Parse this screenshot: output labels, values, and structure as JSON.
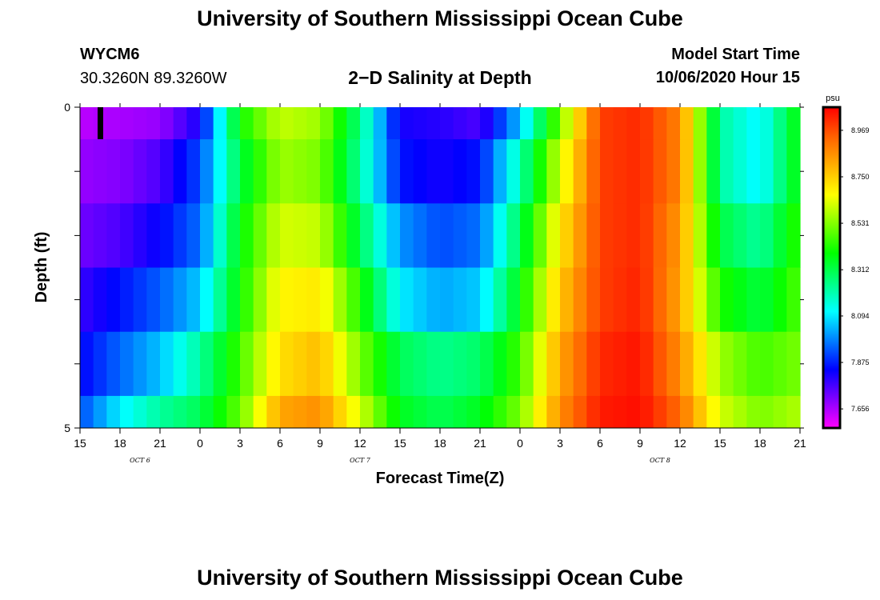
{
  "header": {
    "title": "University of Southern Mississippi Ocean Cube",
    "station_id": "WYCM6",
    "station_coords": "30.3260N 89.3260W",
    "chart_title": "2−D Salinity at Depth",
    "model_start_label": "Model Start Time",
    "model_start_value": "10/06/2020 Hour 15"
  },
  "footer": {
    "title": "University of Southern Mississippi Ocean Cube"
  },
  "chart_data": {
    "type": "heatmap",
    "title": "2−D Salinity at Depth",
    "xlabel": "Forecast Time(Z)",
    "ylabel": "Depth (ft)",
    "x_start_hour": 15,
    "x_end_hour": 69,
    "x_tick_step_hours": 3,
    "x_tick_labels": [
      "15",
      "18",
      "21",
      "0",
      "3",
      "6",
      "9",
      "12",
      "15",
      "18",
      "21",
      "0",
      "3",
      "6",
      "9",
      "12",
      "15",
      "18",
      "21"
    ],
    "date_labels": [
      {
        "label": "OCT 6",
        "hour": 19.5
      },
      {
        "label": "OCT 7",
        "hour": 36
      },
      {
        "label": "OCT 8",
        "hour": 58.5
      }
    ],
    "y_range": [
      0,
      5
    ],
    "y_tick_labels": [
      "0",
      "5"
    ],
    "depth_levels": [
      0,
      1,
      2,
      3,
      4,
      5
    ],
    "current_time_marker_hour": 16.5,
    "colorbar": {
      "unit": "psu",
      "min": 7.566,
      "max": 9.078,
      "tick_values": [
        7.656,
        7.875,
        8.094,
        8.312,
        8.531,
        8.75,
        8.969
      ],
      "tick_labels": [
        "7.656",
        "7.875",
        "8.094",
        "8.312",
        "8.531",
        "8.750",
        "8.969"
      ],
      "colors": [
        "#ff00ff",
        "#8000ff",
        "#0000ff",
        "#0080ff",
        "#00ffff",
        "#00ff80",
        "#00ff00",
        "#80ff00",
        "#ffff00",
        "#ffb000",
        "#ff6000",
        "#ff0000"
      ]
    },
    "hours": [
      15,
      18,
      21,
      24,
      27,
      30,
      33,
      36,
      39,
      42,
      45,
      48,
      51,
      54,
      57,
      60,
      63,
      66,
      69
    ],
    "rows": [
      {
        "depth_band": "0-0.5",
        "values": [
          7.64,
          7.66,
          7.68,
          7.82,
          8.4,
          8.6,
          8.56,
          8.25,
          7.82,
          7.8,
          7.76,
          8.05,
          8.52,
          8.99,
          9.02,
          8.88,
          8.22,
          8.1,
          8.4
        ]
      },
      {
        "depth_band": "0.5-1.5",
        "values": [
          7.68,
          7.7,
          7.76,
          7.92,
          8.32,
          8.56,
          8.52,
          8.22,
          7.86,
          7.82,
          7.86,
          8.2,
          8.62,
          8.99,
          9.02,
          8.88,
          8.22,
          8.1,
          8.4
        ]
      },
      {
        "depth_band": "1.5-2.5",
        "values": [
          7.72,
          7.76,
          7.84,
          7.96,
          8.38,
          8.62,
          8.6,
          8.3,
          8.0,
          7.92,
          7.96,
          8.3,
          8.7,
          8.99,
          9.02,
          8.84,
          8.32,
          8.22,
          8.45
        ]
      },
      {
        "depth_band": "2.5-3.5",
        "values": [
          7.78,
          7.86,
          7.94,
          8.06,
          8.4,
          8.68,
          8.7,
          8.42,
          8.1,
          8.02,
          8.06,
          8.38,
          8.76,
          8.99,
          9.03,
          8.82,
          8.42,
          8.32,
          8.48
        ]
      },
      {
        "depth_band": "3.5-4.5",
        "values": [
          7.84,
          7.95,
          8.05,
          8.22,
          8.46,
          8.72,
          8.78,
          8.52,
          8.3,
          8.24,
          8.28,
          8.46,
          8.82,
          9.02,
          9.05,
          8.86,
          8.56,
          8.46,
          8.52
        ]
      },
      {
        "depth_band": "4.5-5",
        "values": [
          7.92,
          8.1,
          8.22,
          8.3,
          8.5,
          8.82,
          8.86,
          8.62,
          8.36,
          8.3,
          8.36,
          8.52,
          8.86,
          9.04,
          9.06,
          8.92,
          8.62,
          8.52,
          8.58
        ]
      }
    ]
  }
}
